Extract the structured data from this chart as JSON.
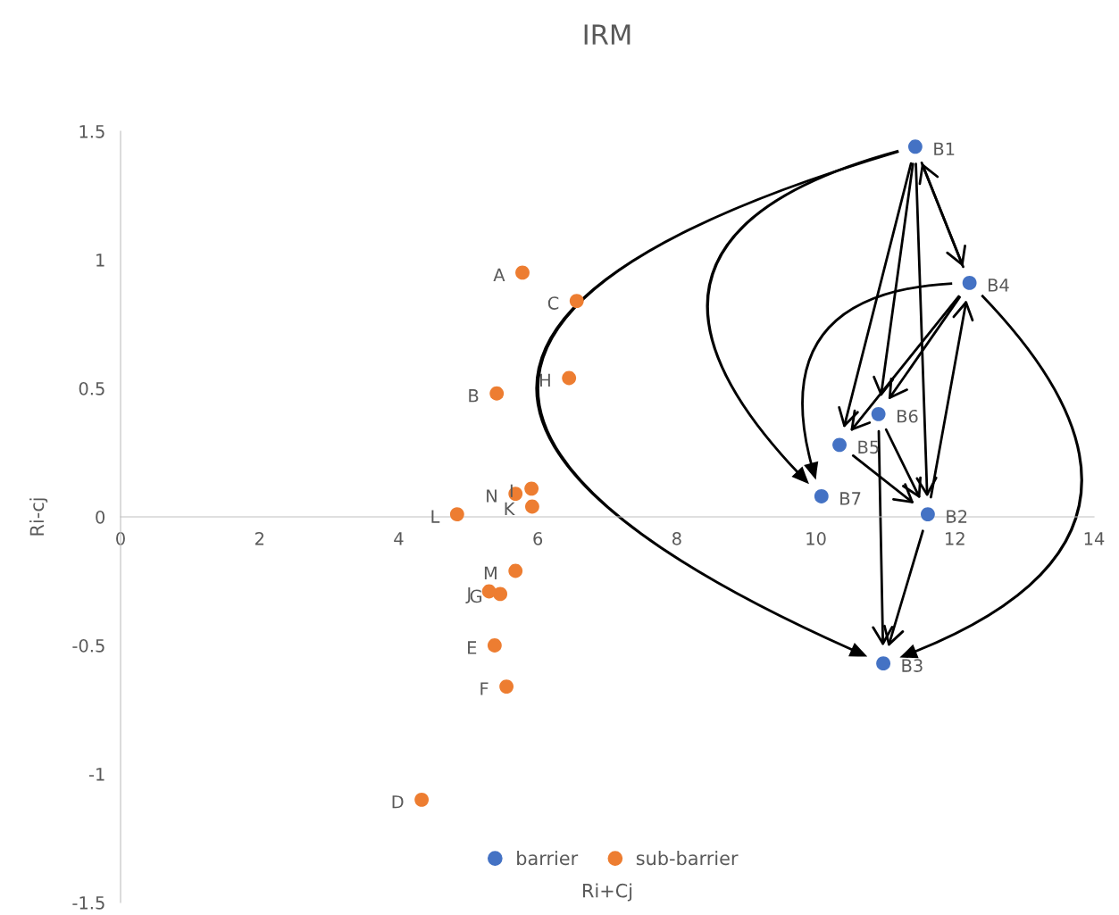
{
  "chart_data": {
    "type": "scatter",
    "title": "IRM",
    "xlabel": "Ri+Cj",
    "ylabel": "Ri-cj",
    "series": [
      {
        "name": "barrier",
        "color": "#4472c4",
        "x": [
          11.43,
          11.61,
          10.97,
          12.21,
          10.34,
          10.9,
          10.08
        ],
        "values": [
          1.44,
          0.01,
          -0.57,
          0.91,
          0.28,
          0.4,
          0.08
        ]
      },
      {
        "name": "sub-barrier",
        "color": "#ed7d31",
        "x": [
          5.78,
          5.41,
          6.56,
          4.33,
          5.38,
          5.55,
          5.46,
          6.45,
          5.91,
          5.3,
          5.92,
          4.84,
          5.68,
          5.68
        ],
        "values": [
          0.95,
          0.48,
          0.84,
          -1.1,
          -0.5,
          -0.66,
          -0.3,
          0.54,
          0.11,
          -0.29,
          0.04,
          0.01,
          -0.21,
          0.09
        ]
      }
    ],
    "annotations": [
      {
        "text": "B1",
        "x": 11.43,
        "y": 1.44
      },
      {
        "text": "B2",
        "x": 11.61,
        "y": 0.01
      },
      {
        "text": "B3",
        "x": 10.97,
        "y": -0.57
      },
      {
        "text": "B4",
        "x": 12.21,
        "y": 0.91
      },
      {
        "text": "B5",
        "x": 10.34,
        "y": 0.28
      },
      {
        "text": "B6",
        "x": 10.9,
        "y": 0.4
      },
      {
        "text": "B7",
        "x": 10.08,
        "y": 0.08
      },
      {
        "text": "A",
        "x": 5.78,
        "y": 0.95
      },
      {
        "text": "B",
        "x": 5.41,
        "y": 0.48
      },
      {
        "text": "C",
        "x": 6.56,
        "y": 0.84
      },
      {
        "text": "D",
        "x": 4.33,
        "y": -1.1
      },
      {
        "text": "E",
        "x": 5.38,
        "y": -0.5
      },
      {
        "text": "F",
        "x": 5.55,
        "y": -0.66
      },
      {
        "text": "G",
        "x": 5.46,
        "y": -0.3
      },
      {
        "text": "H",
        "x": 6.45,
        "y": 0.54
      },
      {
        "text": "I",
        "x": 5.91,
        "y": 0.11
      },
      {
        "text": "J",
        "x": 5.3,
        "y": -0.29
      },
      {
        "text": "K",
        "x": 5.92,
        "y": 0.04
      },
      {
        "text": "L",
        "x": 4.84,
        "y": 0.01
      },
      {
        "text": "M",
        "x": 5.68,
        "y": -0.21
      },
      {
        "text": "N",
        "x": 5.68,
        "y": 0.09
      }
    ],
    "marker": "circle",
    "legend": "bottom",
    "grid": false,
    "xlim": [
      0,
      14
    ],
    "xticks": [
      0,
      2,
      4,
      6,
      8,
      10,
      12,
      14
    ],
    "ylim": [
      -1.5,
      1.5
    ],
    "yticks": [
      -1.5,
      -1,
      -0.5,
      0,
      0.5,
      1,
      1.5
    ]
  }
}
